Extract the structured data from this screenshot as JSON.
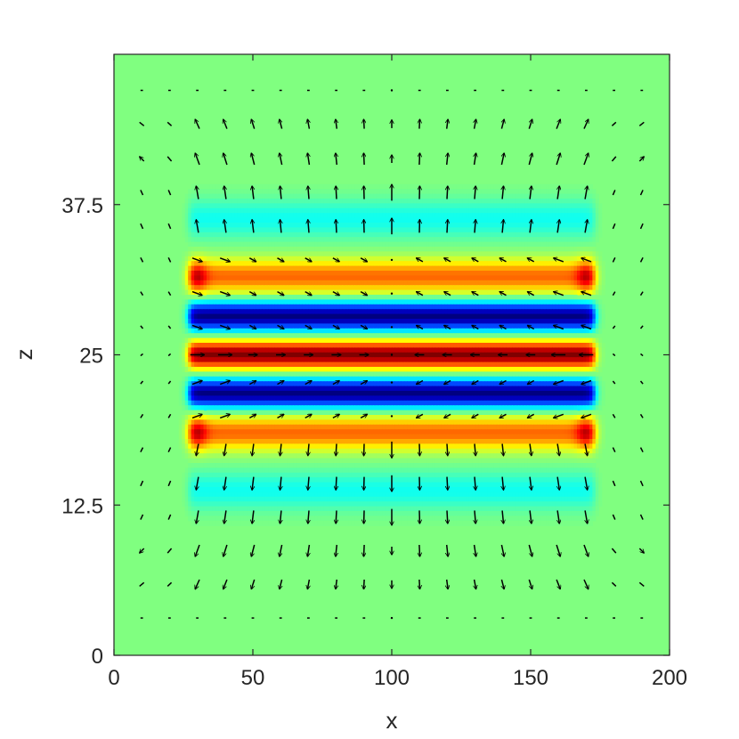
{
  "chart_data": {
    "type": "heatmap",
    "subtype": "field-map-with-quiver-arrows",
    "title": "",
    "xlabel": "x",
    "ylabel": "z",
    "xlim": [
      0,
      200
    ],
    "ylim": [
      0,
      50
    ],
    "x_ticks": [
      0,
      50,
      100,
      150,
      200
    ],
    "x_tick_labels": [
      "0",
      "50",
      "100",
      "150",
      "200"
    ],
    "y_ticks": [
      0,
      12.5,
      25,
      37.5
    ],
    "y_tick_labels": [
      "0",
      "12.5",
      "25",
      "37.5"
    ],
    "colormap": "jet",
    "background_color": "#80ff80",
    "grid": false,
    "field": {
      "x_range": [
        27,
        173
      ],
      "bands": [
        {
          "z_center": 36.3,
          "half_width": 1.6,
          "amplitude": -0.22
        },
        {
          "z_center": 31.5,
          "half_width": 1.35,
          "amplitude": 0.55
        },
        {
          "z_center": 28.2,
          "half_width": 1.15,
          "amplitude": -1.0
        },
        {
          "z_center": 25.0,
          "half_width": 1.1,
          "amplitude": 1.0
        },
        {
          "z_center": 21.8,
          "half_width": 1.15,
          "amplitude": -1.0
        },
        {
          "z_center": 18.5,
          "half_width": 1.35,
          "amplitude": 0.55
        },
        {
          "z_center": 13.7,
          "half_width": 1.6,
          "amplitude": -0.22
        }
      ],
      "edge_blobs": [
        {
          "x": 30,
          "z": 31.5
        },
        {
          "x": 170,
          "z": 31.5
        },
        {
          "x": 30,
          "z": 18.5
        },
        {
          "x": 170,
          "z": 18.5
        }
      ]
    },
    "quiver": {
      "x_positions": [
        10,
        20,
        30,
        40,
        50,
        60,
        70,
        80,
        90,
        100,
        110,
        120,
        130,
        140,
        150,
        160,
        170,
        180,
        190
      ],
      "z_positions": [
        47,
        44.2,
        41.3,
        38.5,
        35.7,
        32.9,
        30.1,
        27.3,
        25,
        22.7,
        19.9,
        17.1,
        14.3,
        11.5,
        8.7,
        5.9,
        3.1
      ]
    }
  }
}
